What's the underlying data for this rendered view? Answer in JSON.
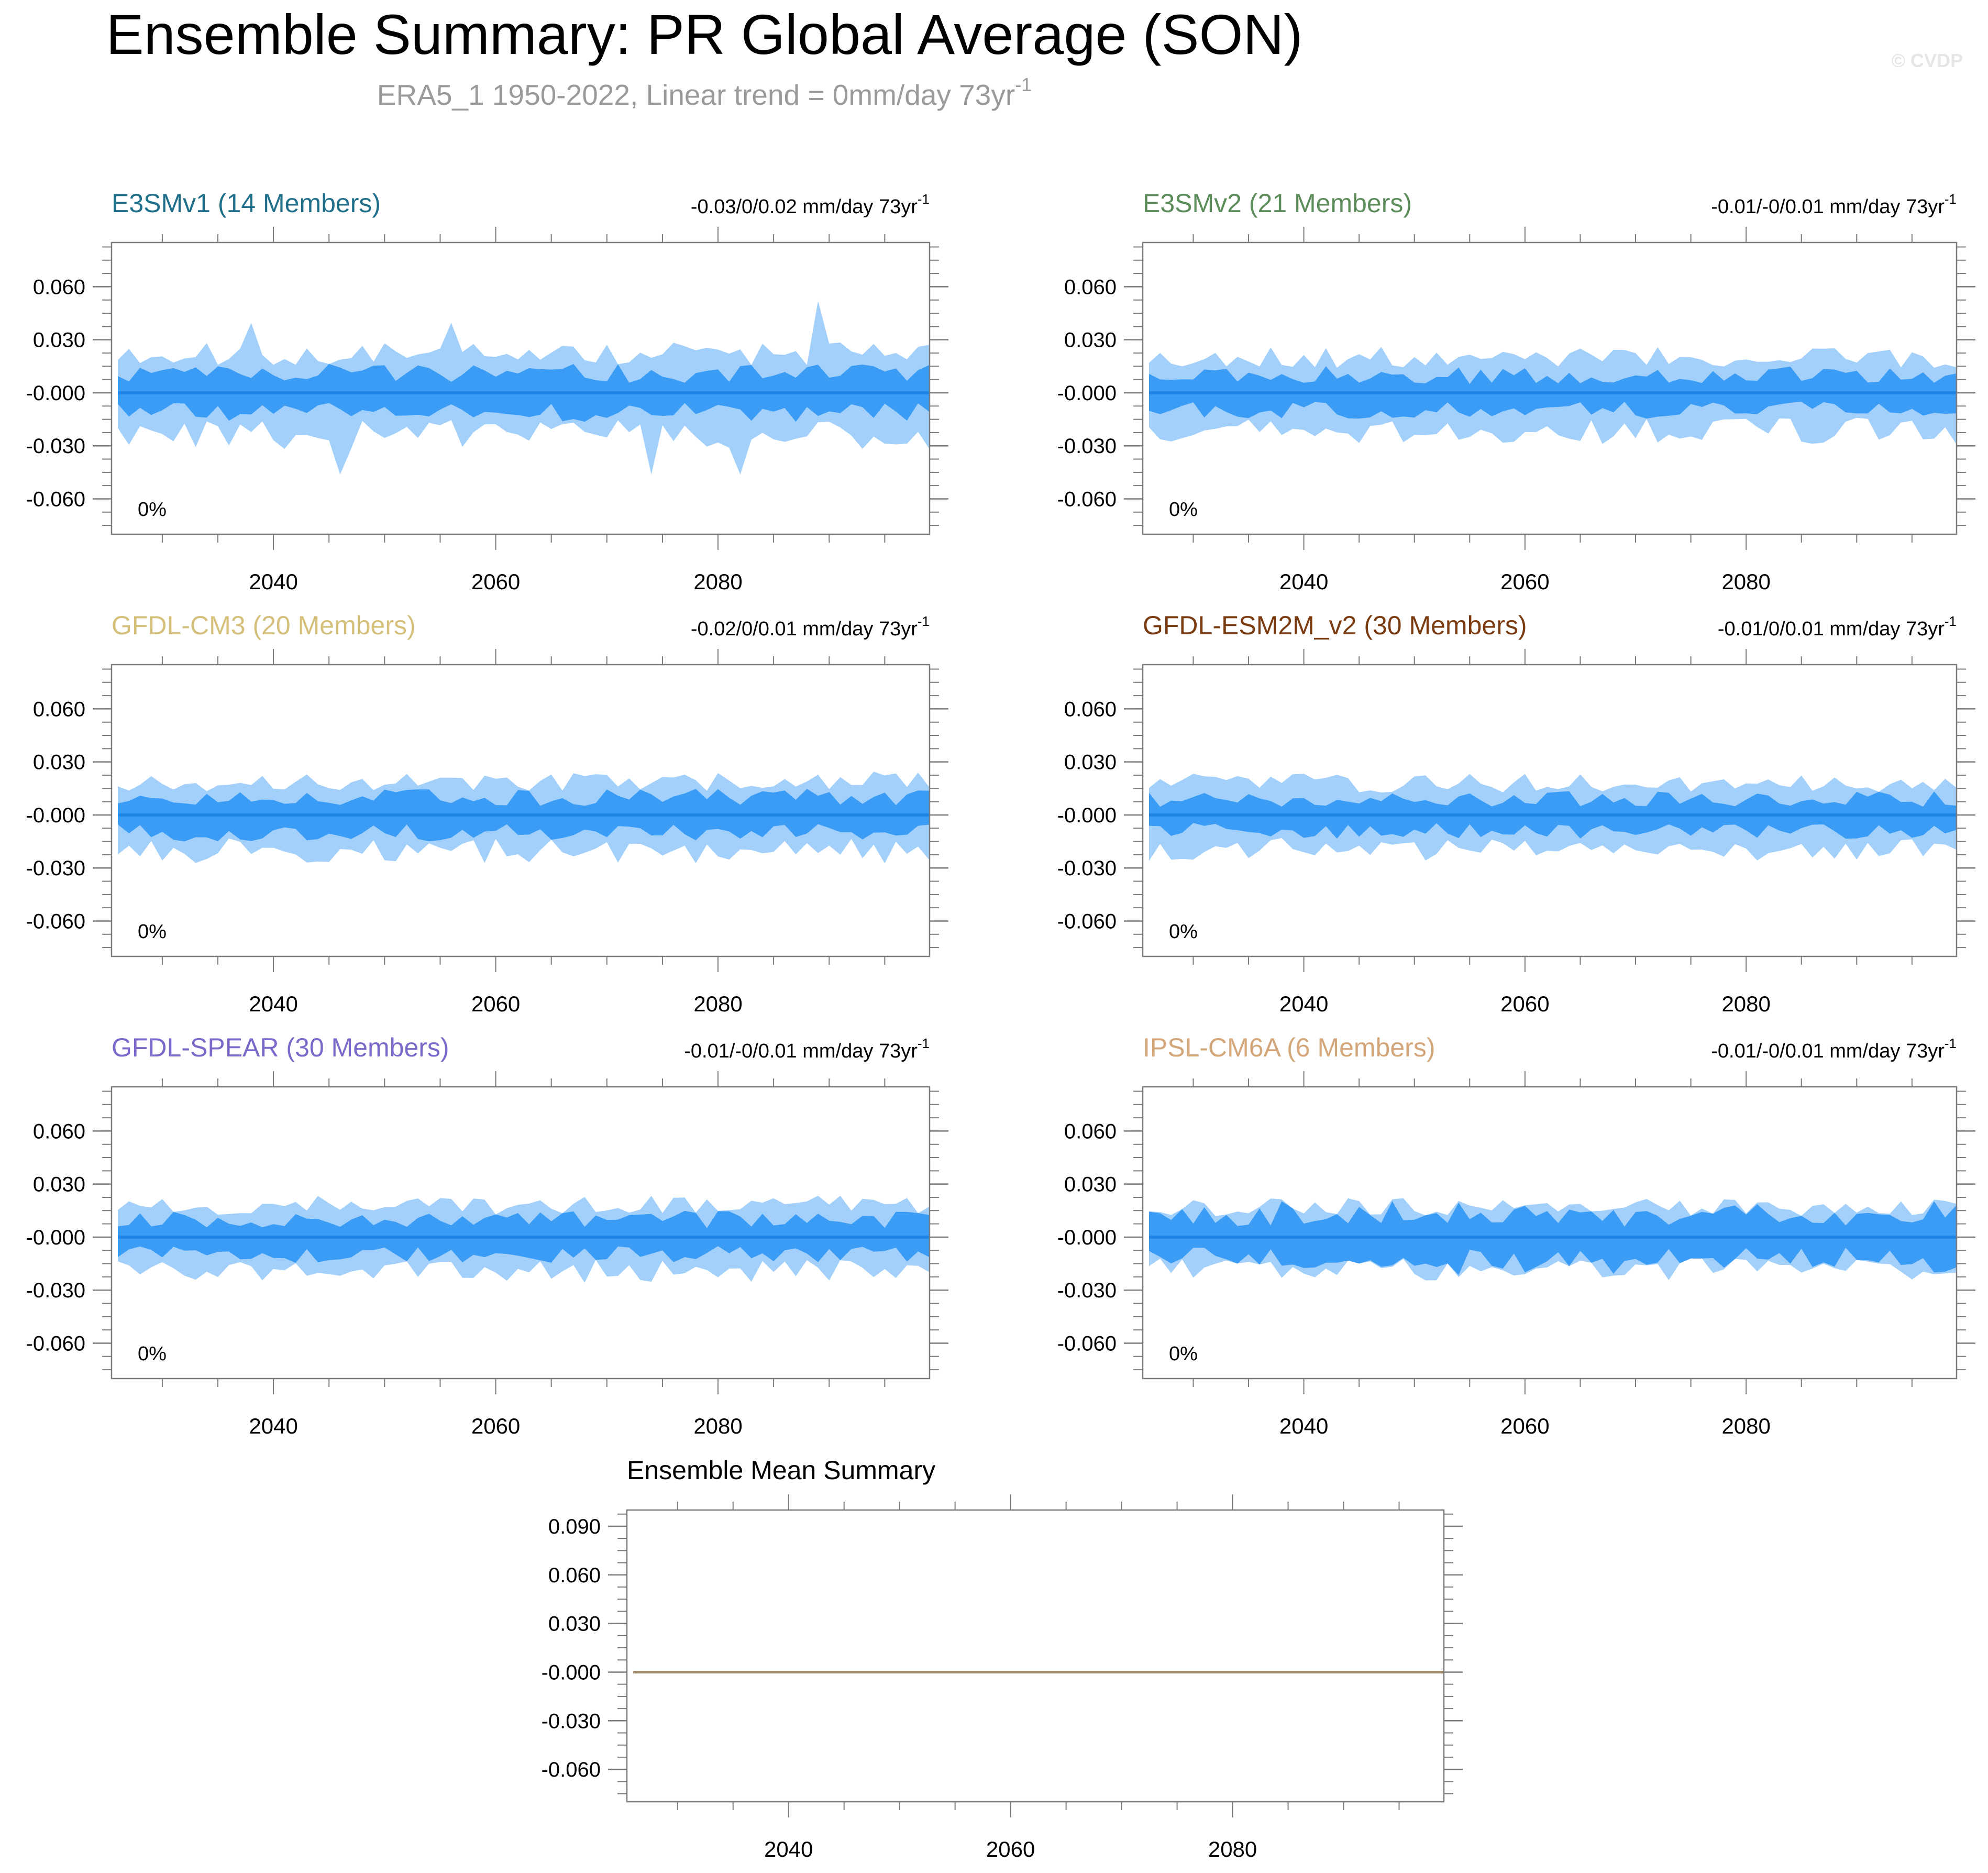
{
  "figure": {
    "title": "Ensemble Summary: PR Global Average (SON)",
    "subtitle": "ERA5_1 1950-2022, Linear trend = 0mm/day 73yr",
    "subtitle_sup": "-1",
    "watermark": "© CVDP",
    "colors": {
      "outer_band": "#a2d0fb",
      "inner_band": "#3a9cf5",
      "mean_line": "#1e84e6",
      "frame": "#7a7a7a",
      "subtitle": "#9a9a9a",
      "watermark": "#e6e6e6"
    }
  },
  "chart_data": [
    {
      "type": "area",
      "title": "E3SMv1 (14 Members)",
      "title_color": "#1f6f8b",
      "trend_label": "-0.03/0/0.02 mm/day 73yr",
      "trend_sup": "-1",
      "percent_label": "0%",
      "x_range": [
        2026,
        2099
      ],
      "ylim": [
        -0.08,
        0.085
      ],
      "x_ticks": [
        "2040",
        "2060",
        "2080"
      ],
      "y_ticks": [
        "0.060",
        "0.030",
        "-0.000",
        "-0.030",
        "-0.060"
      ],
      "members": 14,
      "mean": 0,
      "outer_amp": 0.022,
      "inner_amp": 0.011,
      "spike": 0.052,
      "seed": 11
    },
    {
      "type": "area",
      "title": "E3SMv2 (21 Members)",
      "title_color": "#5b8c5a",
      "trend_label": "-0.01/-0/0.01 mm/day 73yr",
      "trend_sup": "-1",
      "percent_label": "0%",
      "x_range": [
        2026,
        2099
      ],
      "ylim": [
        -0.08,
        0.085
      ],
      "x_ticks": [
        "2040",
        "2060",
        "2080"
      ],
      "y_ticks": [
        "0.060",
        "0.030",
        "-0.000",
        "-0.030",
        "-0.060"
      ],
      "members": 21,
      "mean": 0,
      "outer_amp": 0.02,
      "inner_amp": 0.01,
      "spike": 0,
      "seed": 23
    },
    {
      "type": "area",
      "title": "GFDL-CM3 (20 Members)",
      "title_color": "#d4c07a",
      "trend_label": "-0.02/0/0.01 mm/day 73yr",
      "trend_sup": "-1",
      "percent_label": "0%",
      "x_range": [
        2026,
        2099
      ],
      "ylim": [
        -0.08,
        0.085
      ],
      "x_ticks": [
        "2040",
        "2060",
        "2080"
      ],
      "y_ticks": [
        "0.060",
        "0.030",
        "-0.000",
        "-0.030",
        "-0.060"
      ],
      "members": 20,
      "mean": 0,
      "outer_amp": 0.019,
      "inner_amp": 0.01,
      "spike": 0,
      "seed": 37
    },
    {
      "type": "area",
      "title": "GFDL-ESM2M_v2 (30 Members)",
      "title_color": "#7a3b10",
      "trend_label": "-0.01/0/0.01 mm/day 73yr",
      "trend_sup": "-1",
      "percent_label": "0%",
      "x_range": [
        2026,
        2099
      ],
      "ylim": [
        -0.08,
        0.085
      ],
      "x_ticks": [
        "2040",
        "2060",
        "2080"
      ],
      "y_ticks": [
        "0.060",
        "0.030",
        "-0.000",
        "-0.030",
        "-0.060"
      ],
      "members": 30,
      "mean": 0,
      "outer_amp": 0.018,
      "inner_amp": 0.009,
      "spike": 0,
      "seed": 41
    },
    {
      "type": "area",
      "title": "GFDL-SPEAR (30 Members)",
      "title_color": "#7b68c8",
      "trend_label": "-0.01/-0/0.01 mm/day 73yr",
      "trend_sup": "-1",
      "percent_label": "0%",
      "x_range": [
        2026,
        2099
      ],
      "ylim": [
        -0.08,
        0.085
      ],
      "x_ticks": [
        "2040",
        "2060",
        "2080"
      ],
      "y_ticks": [
        "0.060",
        "0.030",
        "-0.000",
        "-0.030",
        "-0.060"
      ],
      "members": 30,
      "mean": 0,
      "outer_amp": 0.018,
      "inner_amp": 0.01,
      "spike": 0,
      "seed": 53
    },
    {
      "type": "area",
      "title": "IPSL-CM6A (6 Members)",
      "title_color": "#d2a679",
      "trend_label": "-0.01/-0/0.01 mm/day 73yr",
      "trend_sup": "-1",
      "percent_label": "0%",
      "x_range": [
        2026,
        2099
      ],
      "ylim": [
        -0.08,
        0.085
      ],
      "x_ticks": [
        "2040",
        "2060",
        "2080"
      ],
      "y_ticks": [
        "0.060",
        "0.030",
        "-0.000",
        "-0.030",
        "-0.060"
      ],
      "members": 6,
      "mean": 0,
      "outer_amp": 0.017,
      "inner_amp": 0.012,
      "spike": 0,
      "seed": 67
    },
    {
      "type": "line",
      "title": "Ensemble Mean Summary",
      "title_color": "#000000",
      "x_range": [
        2026,
        2099
      ],
      "ylim": [
        -0.08,
        0.1
      ],
      "x_ticks": [
        "2040",
        "2060",
        "2080"
      ],
      "y_ticks": [
        "0.090",
        "0.060",
        "0.030",
        "-0.000",
        "-0.030",
        "-0.060"
      ],
      "series": [
        {
          "name": "ensemble mean",
          "color": "#a08a6a",
          "values": [
            0,
            0
          ]
        }
      ]
    }
  ]
}
